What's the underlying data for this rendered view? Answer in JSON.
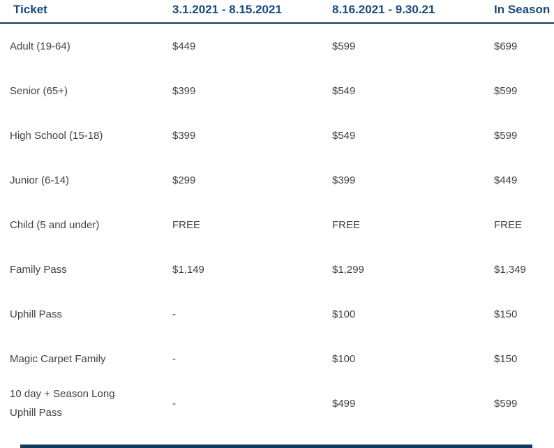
{
  "theme": {
    "header_text_color": "#174A7C",
    "rule_color": "#123A5E",
    "body_text_color": "#414042",
    "background_color": "#ffffff"
  },
  "table": {
    "columns": [
      "Ticket",
      "3.1.2021 - 8.15.2021",
      "8.16.2021 - 9.30.21",
      "In Season"
    ],
    "rows": [
      {
        "label": "Adult (19-64)",
        "values": [
          "$449",
          "$599",
          "$699"
        ]
      },
      {
        "label": "Senior (65+)",
        "values": [
          "$399",
          "$549",
          "$599"
        ]
      },
      {
        "label": "High School (15-18)",
        "values": [
          "$399",
          "$549",
          "$599"
        ]
      },
      {
        "label": "Junior (6-14)",
        "values": [
          "$299",
          "$399",
          "$449"
        ]
      },
      {
        "label": "Child (5 and under)",
        "values": [
          "FREE",
          "FREE",
          "FREE"
        ]
      },
      {
        "label": "Family Pass",
        "values": [
          "$1,149",
          "$1,299",
          "$1,349"
        ]
      },
      {
        "label": "Uphill Pass",
        "values": [
          "-",
          "$100",
          "$150"
        ]
      },
      {
        "label": "Magic Carpet Family",
        "values": [
          "-",
          "$100",
          "$150"
        ]
      },
      {
        "label": "10 day + Season Long Uphill Pass",
        "values": [
          "-",
          "$499",
          "$599"
        ]
      }
    ]
  }
}
